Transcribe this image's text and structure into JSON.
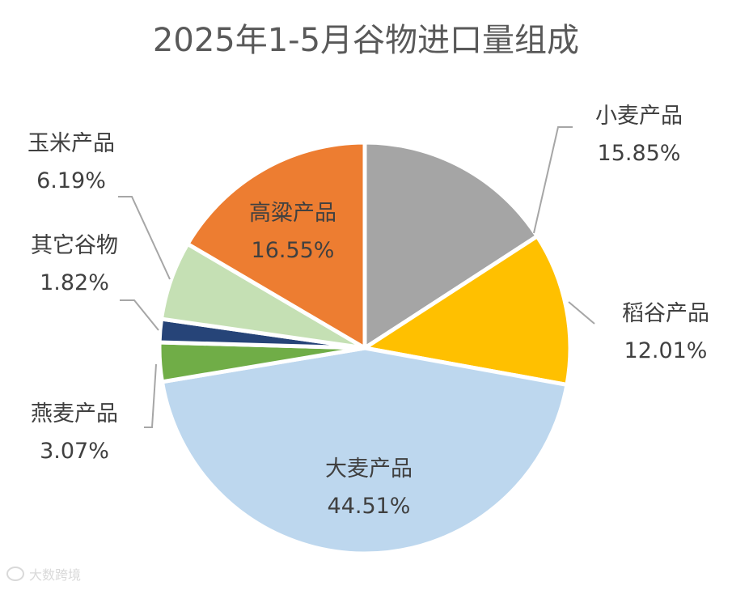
{
  "chart_data": {
    "type": "pie",
    "title": "2025年1-5月谷物进口量组成",
    "unit": "%",
    "slices": [
      {
        "name": "小麦产品",
        "value": 15.85,
        "label": "15.85%",
        "color": "#A5A5A5"
      },
      {
        "name": "稻谷产品",
        "value": 12.01,
        "label": "12.01%",
        "color": "#FFC000"
      },
      {
        "name": "大麦产品",
        "value": 44.51,
        "label": "44.51%",
        "color": "#BDD7EE"
      },
      {
        "name": "燕麦产品",
        "value": 3.07,
        "label": "3.07%",
        "color": "#70AD47"
      },
      {
        "name": "其它谷物",
        "value": 1.82,
        "label": "1.82%",
        "color": "#264478"
      },
      {
        "name": "玉米产品",
        "value": 6.19,
        "label": "6.19%",
        "color": "#C5E0B4"
      },
      {
        "name": "高粱产品",
        "value": 16.55,
        "label": "16.55%",
        "color": "#ED7D31"
      }
    ]
  },
  "watermark": {
    "text": "大数跨境"
  }
}
